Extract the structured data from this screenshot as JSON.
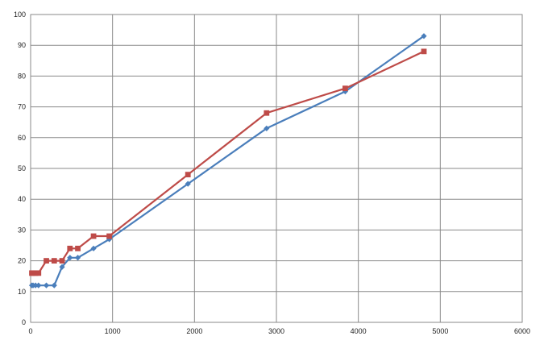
{
  "chart_data": {
    "type": "line",
    "title": "",
    "xlabel": "",
    "ylabel": "",
    "xlim": [
      0,
      6000
    ],
    "ylim": [
      0,
      100
    ],
    "x_ticks": [
      0,
      1000,
      2000,
      3000,
      4000,
      5000,
      6000
    ],
    "y_ticks": [
      0,
      10,
      20,
      30,
      40,
      50,
      60,
      70,
      80,
      90,
      100
    ],
    "x_tick_labels": [
      "0",
      "1000",
      "2000",
      "3000",
      "4000",
      "5000",
      "6000"
    ],
    "y_tick_labels": [
      "0",
      "10",
      "20",
      "30",
      "40",
      "50",
      "60",
      "70",
      "80",
      "90",
      "100"
    ],
    "grid": true,
    "legend": "none",
    "series": [
      {
        "color": "#4a7ebb",
        "marker": "diamond",
        "points": [
          [
            15,
            12
          ],
          [
            30,
            12
          ],
          [
            60,
            12
          ],
          [
            96,
            12
          ],
          [
            192,
            12
          ],
          [
            288,
            12
          ],
          [
            384,
            18
          ],
          [
            480,
            21
          ],
          [
            576,
            21
          ],
          [
            768,
            24
          ],
          [
            960,
            27
          ],
          [
            1920,
            45
          ],
          [
            2880,
            63
          ],
          [
            3840,
            75
          ],
          [
            4800,
            93
          ]
        ]
      },
      {
        "color": "#be4b48",
        "marker": "square",
        "points": [
          [
            15,
            16
          ],
          [
            30,
            16
          ],
          [
            60,
            16
          ],
          [
            96,
            16
          ],
          [
            192,
            20
          ],
          [
            288,
            20
          ],
          [
            384,
            20
          ],
          [
            480,
            24
          ],
          [
            576,
            24
          ],
          [
            768,
            28
          ],
          [
            960,
            28
          ],
          [
            1920,
            48
          ],
          [
            2880,
            68
          ],
          [
            3840,
            76
          ],
          [
            4800,
            88
          ]
        ]
      }
    ]
  }
}
